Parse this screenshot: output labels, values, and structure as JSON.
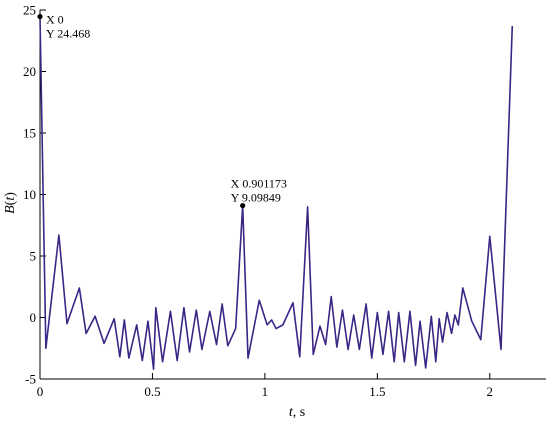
{
  "chart_data": {
    "type": "line",
    "xlabel_var": "t",
    "xlabel_unit": ", s",
    "ylabel_var": "B",
    "ylabel_arg": "t",
    "xlim": [
      0,
      2.25
    ],
    "ylim": [
      -5,
      25
    ],
    "x_ticks": [
      0,
      0.5,
      1,
      1.5,
      2
    ],
    "x_tick_labels": [
      "0",
      "0.5",
      "1",
      "1.5",
      "2"
    ],
    "y_ticks": [
      -5,
      0,
      5,
      10,
      15,
      20,
      25
    ],
    "y_tick_labels": [
      "-5",
      "0",
      "5",
      "10",
      "15",
      "20",
      "25"
    ],
    "grid": false,
    "series": [
      {
        "color": "#3b2585",
        "points": [
          [
            0.0,
            24.468
          ],
          [
            0.026,
            -2.5
          ],
          [
            0.084,
            6.7
          ],
          [
            0.12,
            -0.5
          ],
          [
            0.175,
            2.4
          ],
          [
            0.205,
            -1.3
          ],
          [
            0.245,
            0.1
          ],
          [
            0.285,
            -2.1
          ],
          [
            0.33,
            -0.1
          ],
          [
            0.355,
            -3.2
          ],
          [
            0.375,
            -0.2
          ],
          [
            0.395,
            -3.3
          ],
          [
            0.43,
            -0.6
          ],
          [
            0.455,
            -3.5
          ],
          [
            0.48,
            -0.3
          ],
          [
            0.505,
            -4.2
          ],
          [
            0.515,
            0.8
          ],
          [
            0.545,
            -3.6
          ],
          [
            0.58,
            0.5
          ],
          [
            0.61,
            -3.5
          ],
          [
            0.64,
            0.8
          ],
          [
            0.665,
            -2.8
          ],
          [
            0.695,
            0.6
          ],
          [
            0.72,
            -2.6
          ],
          [
            0.755,
            0.5
          ],
          [
            0.785,
            -2.2
          ],
          [
            0.81,
            1.1
          ],
          [
            0.835,
            -2.3
          ],
          [
            0.87,
            -0.9
          ],
          [
            0.901173,
            9.09849
          ],
          [
            0.925,
            -3.3
          ],
          [
            0.975,
            1.4
          ],
          [
            1.01,
            -0.6
          ],
          [
            1.03,
            -0.2
          ],
          [
            1.05,
            -0.9
          ],
          [
            1.08,
            -0.6
          ],
          [
            1.125,
            1.2
          ],
          [
            1.155,
            -3.2
          ],
          [
            1.19,
            9.0
          ],
          [
            1.215,
            -3.0
          ],
          [
            1.245,
            -0.7
          ],
          [
            1.27,
            -2.2
          ],
          [
            1.295,
            1.7
          ],
          [
            1.32,
            -2.4
          ],
          [
            1.345,
            0.6
          ],
          [
            1.37,
            -2.6
          ],
          [
            1.395,
            0.2
          ],
          [
            1.42,
            -2.6
          ],
          [
            1.45,
            1.1
          ],
          [
            1.475,
            -3.3
          ],
          [
            1.5,
            0.4
          ],
          [
            1.525,
            -3.0
          ],
          [
            1.55,
            0.5
          ],
          [
            1.575,
            -3.6
          ],
          [
            1.595,
            0.4
          ],
          [
            1.62,
            -3.6
          ],
          [
            1.645,
            0.5
          ],
          [
            1.67,
            -3.9
          ],
          [
            1.69,
            -0.3
          ],
          [
            1.715,
            -4.1
          ],
          [
            1.74,
            0.1
          ],
          [
            1.76,
            -3.6
          ],
          [
            1.775,
            -0.1
          ],
          [
            1.79,
            -2.0
          ],
          [
            1.81,
            0.4
          ],
          [
            1.83,
            -1.3
          ],
          [
            1.845,
            0.2
          ],
          [
            1.86,
            -0.6
          ],
          [
            1.88,
            2.4
          ],
          [
            1.92,
            -0.3
          ],
          [
            1.96,
            -1.8
          ],
          [
            2.0,
            6.6
          ],
          [
            2.05,
            -2.6
          ],
          [
            2.1,
            23.7
          ]
        ]
      }
    ],
    "annotations": [
      {
        "x": 0,
        "y": 24.468,
        "label_x": "X 0",
        "label_y": "Y 24.468"
      },
      {
        "x": 0.901173,
        "y": 9.09849,
        "label_x": "X 0.901173",
        "label_y": "Y 9.09849"
      }
    ]
  }
}
